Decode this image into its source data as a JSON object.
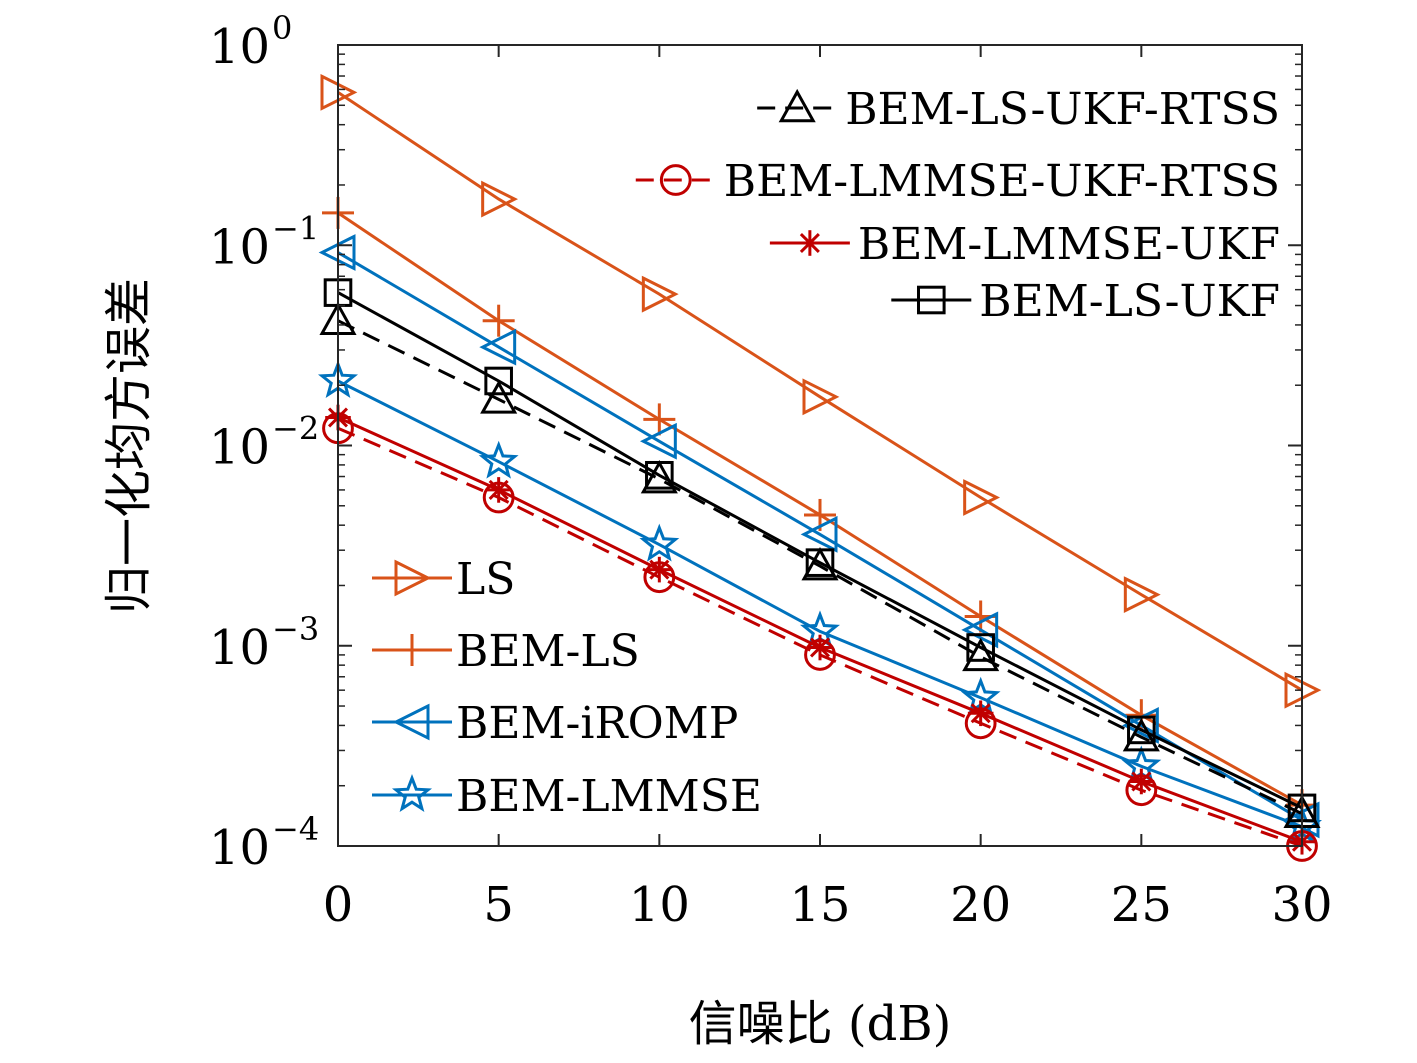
{
  "chart_data": {
    "type": "line",
    "xlabel": "信噪比 (dB)",
    "ylabel": "归一化均方误差",
    "x": [
      0,
      5,
      10,
      15,
      20,
      25,
      30
    ],
    "xlim": [
      0,
      30
    ],
    "ylim": [
      0.0001,
      1
    ],
    "yscale": "log",
    "x_ticks": [
      "0",
      "5",
      "10",
      "15",
      "20",
      "25",
      "30"
    ],
    "y_ticks": [
      {
        "base": "10",
        "exp": "0",
        "value": 1
      },
      {
        "base": "10",
        "exp": "−1",
        "value": 0.1
      },
      {
        "base": "10",
        "exp": "−2",
        "value": 0.01
      },
      {
        "base": "10",
        "exp": "−3",
        "value": 0.001
      },
      {
        "base": "10",
        "exp": "−4",
        "value": 0.0001
      }
    ],
    "grid": false,
    "legends": [
      {
        "placement": "top-right",
        "entries": [
          "BEM-LS-UKF-RTSS",
          "BEM-LMMSE-UKF-RTSS",
          "BEM-LMMSE-UKF",
          "BEM-LS-UKF"
        ]
      },
      {
        "placement": "bottom-left",
        "entries": [
          "LS",
          "BEM-LS",
          "BEM-iROMP",
          "BEM-LMMSE"
        ]
      }
    ],
    "series": [
      {
        "name": "LS",
        "color": "#D95319",
        "marker": "triangle-right",
        "dash": "solid",
        "values": [
          0.58,
          0.17,
          0.057,
          0.0175,
          0.0055,
          0.0018,
          0.0006
        ]
      },
      {
        "name": "BEM-LS",
        "color": "#D95319",
        "marker": "plus",
        "dash": "solid",
        "values": [
          0.145,
          0.042,
          0.0135,
          0.0045,
          0.0014,
          0.00045,
          0.00016
        ]
      },
      {
        "name": "BEM-iROMP",
        "color": "#0072BD",
        "marker": "triangle-left",
        "dash": "solid",
        "values": [
          0.092,
          0.031,
          0.0105,
          0.0036,
          0.0012,
          0.0004,
          0.000135
        ]
      },
      {
        "name": "BEM-LMMSE",
        "color": "#0072BD",
        "marker": "star",
        "dash": "solid",
        "values": [
          0.021,
          0.0083,
          0.0032,
          0.00118,
          0.00055,
          0.00025,
          0.000125
        ]
      },
      {
        "name": "BEM-LS-UKF-RTSS",
        "color": "#000000",
        "marker": "triangle-up",
        "dash": "dashed",
        "values": [
          0.042,
          0.017,
          0.0068,
          0.0025,
          0.00088,
          0.00035,
          0.000145
        ]
      },
      {
        "name": "BEM-LMMSE-UKF-RTSS",
        "color": "#C00000",
        "marker": "circle",
        "dash": "dashed",
        "values": [
          0.0122,
          0.0055,
          0.0022,
          0.0009,
          0.00041,
          0.00019,
          0.0001
        ]
      },
      {
        "name": "BEM-LMMSE-UKF",
        "color": "#C00000",
        "marker": "asterisk",
        "dash": "solid",
        "values": [
          0.0138,
          0.006,
          0.0024,
          0.00098,
          0.00046,
          0.00021,
          0.000105
        ]
      },
      {
        "name": "BEM-LS-UKF",
        "color": "#000000",
        "marker": "square",
        "dash": "solid",
        "values": [
          0.058,
          0.021,
          0.0071,
          0.0026,
          0.00098,
          0.00038,
          0.000155
        ]
      }
    ]
  }
}
